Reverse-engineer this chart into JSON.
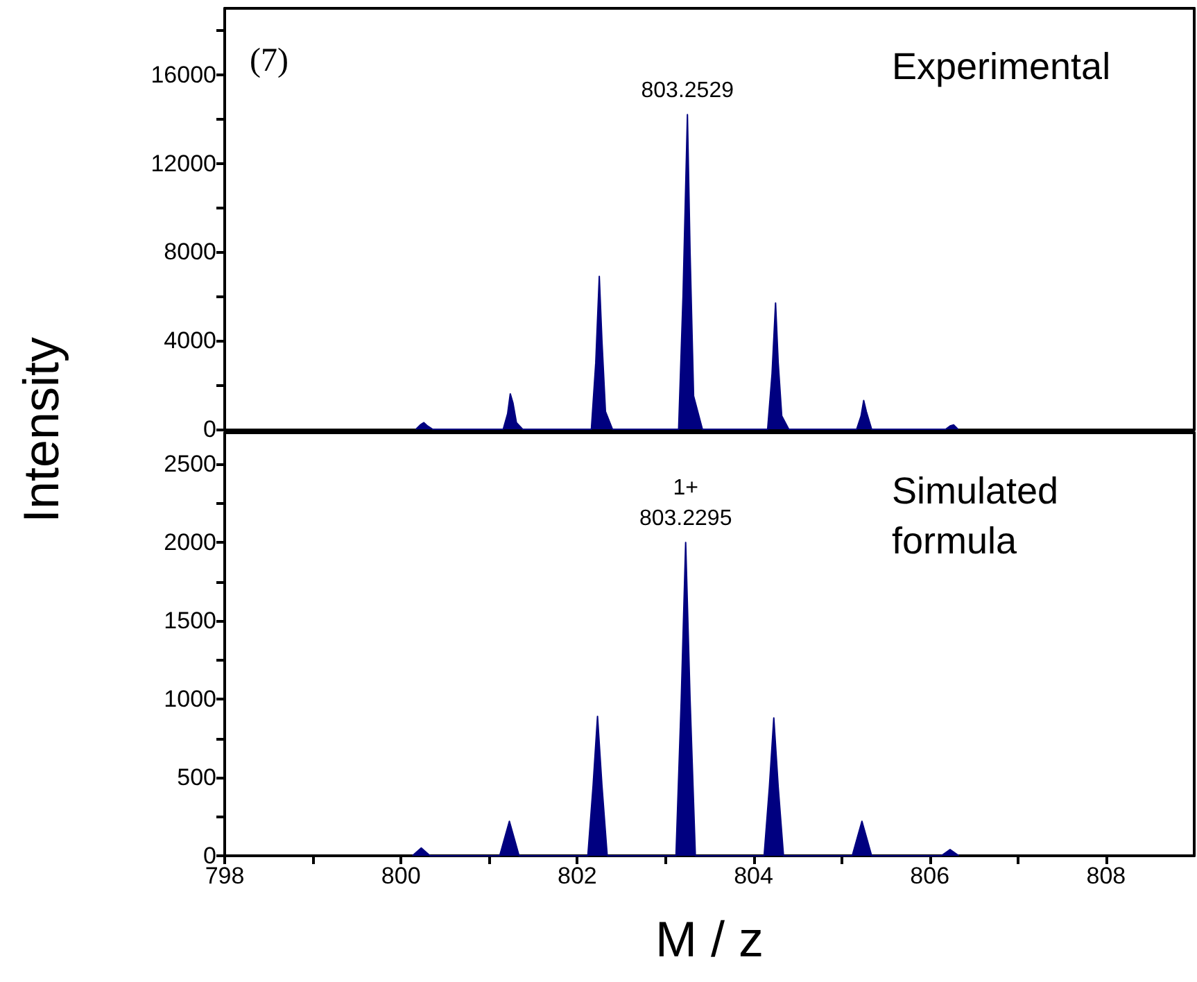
{
  "chart_data": [
    {
      "type": "area",
      "ylabel": "Intensity",
      "xlim": [
        798,
        809
      ],
      "ylim": [
        0,
        19000
      ],
      "yticks": [
        0,
        {
          "value": 2000,
          "label": null
        },
        4000,
        {
          "value": 6000,
          "label": null
        },
        8000,
        {
          "value": 10000,
          "label": null
        },
        12000,
        {
          "value": 14000,
          "label": null
        },
        16000,
        {
          "value": 18000,
          "label": null
        }
      ],
      "tick_labels": "y",
      "series": [
        {
          "color": "#000080",
          "x": [
            800.17,
            800.22,
            800.26,
            800.3,
            800.36,
            801.16,
            801.21,
            801.24,
            801.27,
            801.31,
            801.38,
            802.16,
            802.21,
            802.25,
            802.28,
            802.32,
            802.4,
            803.15,
            803.2,
            803.25,
            803.28,
            803.32,
            803.42,
            804.16,
            804.21,
            804.25,
            804.28,
            804.32,
            804.4,
            805.17,
            805.22,
            805.25,
            805.28,
            805.34,
            806.18,
            806.23,
            806.27,
            806.32
          ],
          "values": [
            0,
            200,
            300,
            150,
            0,
            0,
            700,
            1600,
            1200,
            300,
            0,
            0,
            3000,
            6900,
            4000,
            800,
            0,
            0,
            6000,
            14200,
            8000,
            1500,
            0,
            0,
            2500,
            5700,
            3000,
            600,
            0,
            0,
            600,
            1300,
            800,
            0,
            0,
            150,
            200,
            0
          ]
        }
      ],
      "annotations": [
        "(7)",
        "Experimental",
        {
          "text": "803.2529",
          "x": 803.25,
          "y": 14200
        }
      ]
    },
    {
      "type": "area",
      "xlabel": "M / z",
      "xlim": [
        798,
        809
      ],
      "xticks": [
        798,
        {
          "value": 799,
          "label": null
        },
        800,
        {
          "value": 801,
          "label": null
        },
        802,
        {
          "value": 803,
          "label": null
        },
        804,
        {
          "value": 805,
          "label": null
        },
        806,
        {
          "value": 807,
          "label": null
        },
        808
      ],
      "ylim": [
        0,
        2700
      ],
      "yticks": [
        0,
        {
          "value": 250,
          "label": null
        },
        500,
        {
          "value": 750,
          "label": null
        },
        1000,
        {
          "value": 1250,
          "label": null
        },
        1500,
        {
          "value": 1750,
          "label": null
        },
        2000,
        {
          "value": 2250,
          "label": null
        },
        2500
      ],
      "series": [
        {
          "color": "#000080",
          "x": [
            800.13,
            800.23,
            800.33,
            801.12,
            801.18,
            801.23,
            801.28,
            801.34,
            802.12,
            802.18,
            802.23,
            802.28,
            802.34,
            803.12,
            803.18,
            803.23,
            803.28,
            803.34,
            804.12,
            804.18,
            804.23,
            804.28,
            804.34,
            805.12,
            805.18,
            805.23,
            805.28,
            805.34,
            806.13,
            806.23,
            806.33
          ],
          "values": [
            0,
            50,
            0,
            0,
            120,
            220,
            120,
            0,
            0,
            450,
            890,
            450,
            0,
            0,
            1000,
            2000,
            1000,
            0,
            0,
            440,
            880,
            440,
            0,
            0,
            120,
            220,
            120,
            0,
            0,
            40,
            0
          ]
        }
      ],
      "annotations": [
        "Simulated formula",
        {
          "text": "1+\n803.2295",
          "x": 803.23,
          "y": 2000
        }
      ]
    }
  ]
}
